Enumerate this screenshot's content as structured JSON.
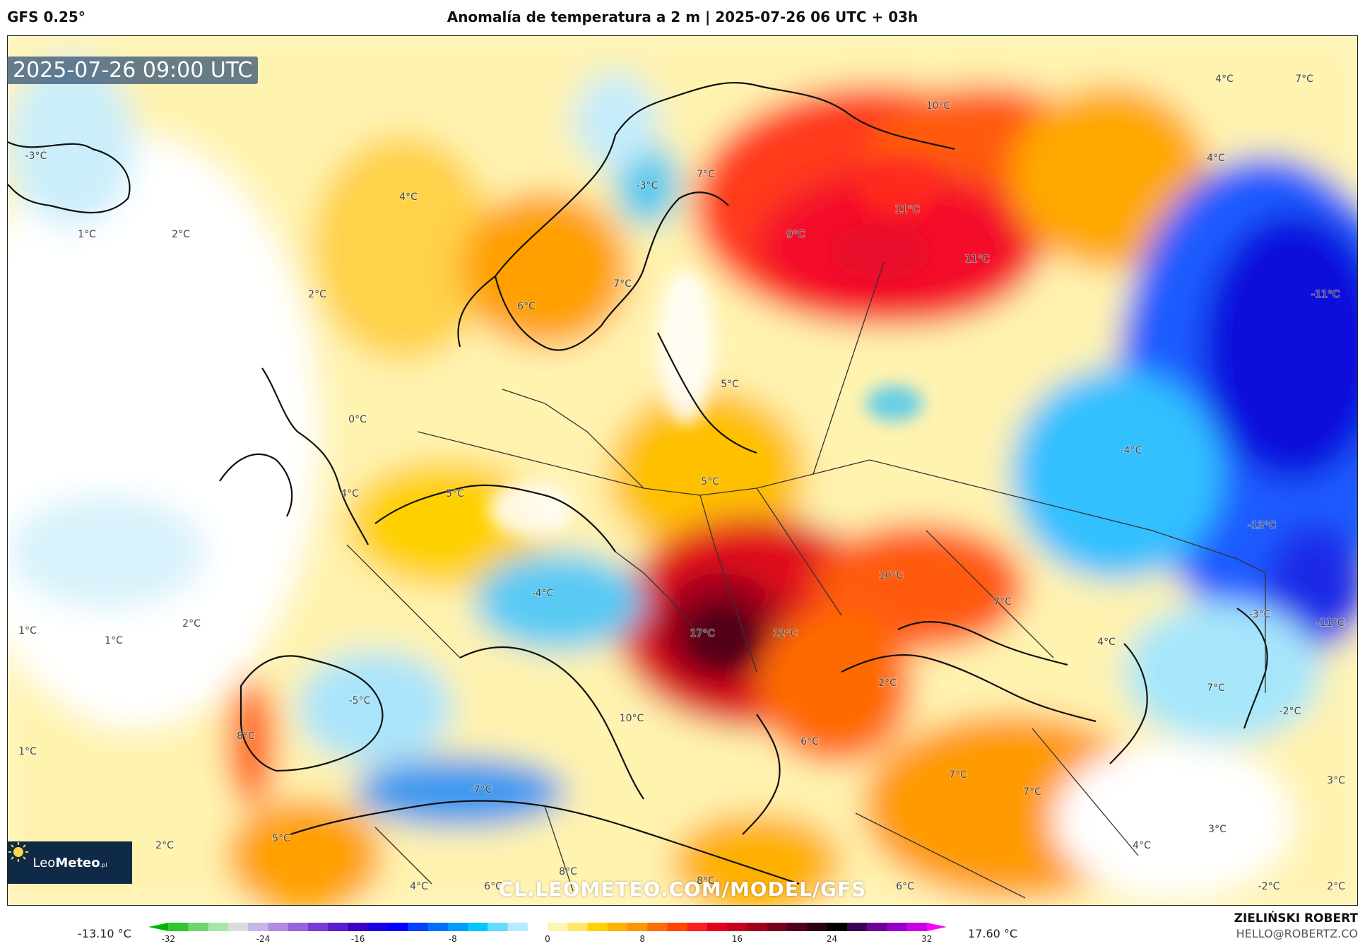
{
  "header": {
    "model": "GFS 0.25°",
    "title": "Anomalía de temperatura a 2 m | 2025-07-26 06 UTC + 03h"
  },
  "map": {
    "valid_time": "2025-07-26 09:00 UTC",
    "watermark": "CL.LEOMETEO.COM/MODEL/GFS",
    "logo": {
      "name_light": "Leo",
      "name_bold": "Meteo",
      "suffix": ".pl"
    },
    "labels": [
      {
        "text": "-3°C"
      },
      {
        "text": "1°C"
      },
      {
        "text": "2°C"
      },
      {
        "text": "4°C"
      },
      {
        "text": "-3°C"
      },
      {
        "text": "7°C"
      },
      {
        "text": "10°C"
      },
      {
        "text": "4°C"
      },
      {
        "text": "7°C"
      },
      {
        "text": "4°C"
      },
      {
        "text": "11°C"
      },
      {
        "text": "9°C"
      },
      {
        "text": "11°C"
      },
      {
        "text": "2°C"
      },
      {
        "text": "7°C"
      },
      {
        "text": "6°C"
      },
      {
        "text": "-11°C"
      },
      {
        "text": "5°C"
      },
      {
        "text": "0°C"
      },
      {
        "text": "-4°C"
      },
      {
        "text": "5°C"
      },
      {
        "text": "4°C"
      },
      {
        "text": "5°C"
      },
      {
        "text": "-13°C"
      },
      {
        "text": "10°C"
      },
      {
        "text": "-4°C"
      },
      {
        "text": "7°C"
      },
      {
        "text": "1°C"
      },
      {
        "text": "2°C"
      },
      {
        "text": "1°C"
      },
      {
        "text": "17°C"
      },
      {
        "text": "12°C"
      },
      {
        "text": "-3°C"
      },
      {
        "text": "-11°C"
      },
      {
        "text": "4°C"
      },
      {
        "text": "2°C"
      },
      {
        "text": "-5°C"
      },
      {
        "text": "7°C"
      },
      {
        "text": "10°C"
      },
      {
        "text": "-2°C"
      },
      {
        "text": "8°C"
      },
      {
        "text": "6°C"
      },
      {
        "text": "1°C"
      },
      {
        "text": "7°C"
      },
      {
        "text": "7°C"
      },
      {
        "text": "-7°C"
      },
      {
        "text": "3°C"
      },
      {
        "text": "3°C"
      },
      {
        "text": "2°C"
      },
      {
        "text": "5°C"
      },
      {
        "text": "4°C"
      },
      {
        "text": "8°C"
      },
      {
        "text": "4°C"
      },
      {
        "text": "6°C"
      },
      {
        "text": "8°C"
      },
      {
        "text": "6°C"
      },
      {
        "text": "-2°C"
      },
      {
        "text": "2°C"
      }
    ]
  },
  "legend": {
    "min_label": "-13.10 °C",
    "max_label": "17.60 °C",
    "ticks": [
      "-32",
      "-24",
      "-16",
      "-8",
      "0",
      "8",
      "16",
      "24",
      "32"
    ],
    "colors": [
      "#00b300",
      "#2fc52f",
      "#6fd66f",
      "#a8e6a8",
      "#dcdcdc",
      "#c8b4e6",
      "#b08ce0",
      "#9664dc",
      "#7a3cd8",
      "#5a1ed0",
      "#3c00c8",
      "#1e00e6",
      "#0000ff",
      "#0040ff",
      "#0070ff",
      "#009cff",
      "#00c8ff",
      "#64dcff",
      "#b4ecff",
      "#ffffff",
      "#fff5b4",
      "#ffe66e",
      "#ffd200",
      "#ffb400",
      "#ff9600",
      "#ff6e00",
      "#ff4600",
      "#ff1e1e",
      "#e6001e",
      "#c8001e",
      "#a0001e",
      "#78001e",
      "#50001e",
      "#2a0014",
      "#000000",
      "#3c0050",
      "#6e0096",
      "#9600c8",
      "#c800e6",
      "#ff00ff"
    ]
  },
  "credits": {
    "name": "ZIELIŃSKI ROBERT",
    "email": "HELLO@ROBERTZ.CO"
  }
}
